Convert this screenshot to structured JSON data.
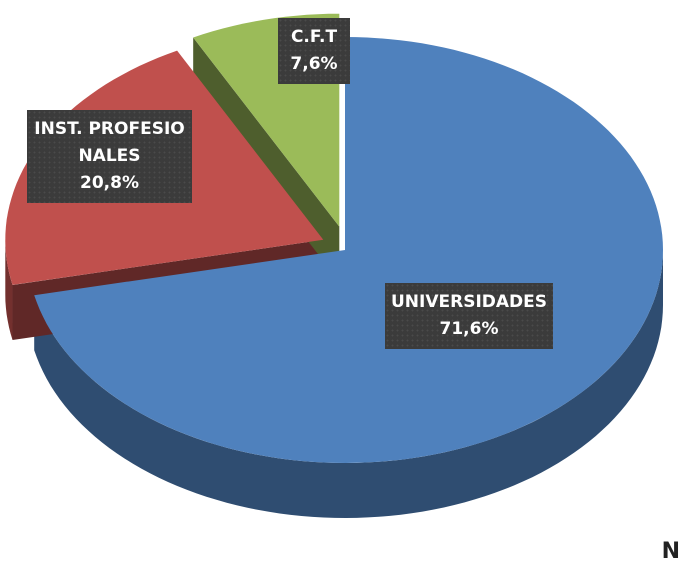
{
  "chart_data": {
    "type": "pie",
    "categories": [
      "UNIVERSIDADES",
      "INST. PROFESIONALES",
      "C.F.T"
    ],
    "values": [
      71.6,
      20.8,
      7.6
    ],
    "value_labels": [
      "71,6%",
      "20,8%",
      "7,6%"
    ],
    "colors": [
      "#4f81bd",
      "#c0504d",
      "#9bbb59"
    ],
    "start_angle": -90,
    "direction": "clockwise",
    "three_d": true
  },
  "corner_text": "N"
}
